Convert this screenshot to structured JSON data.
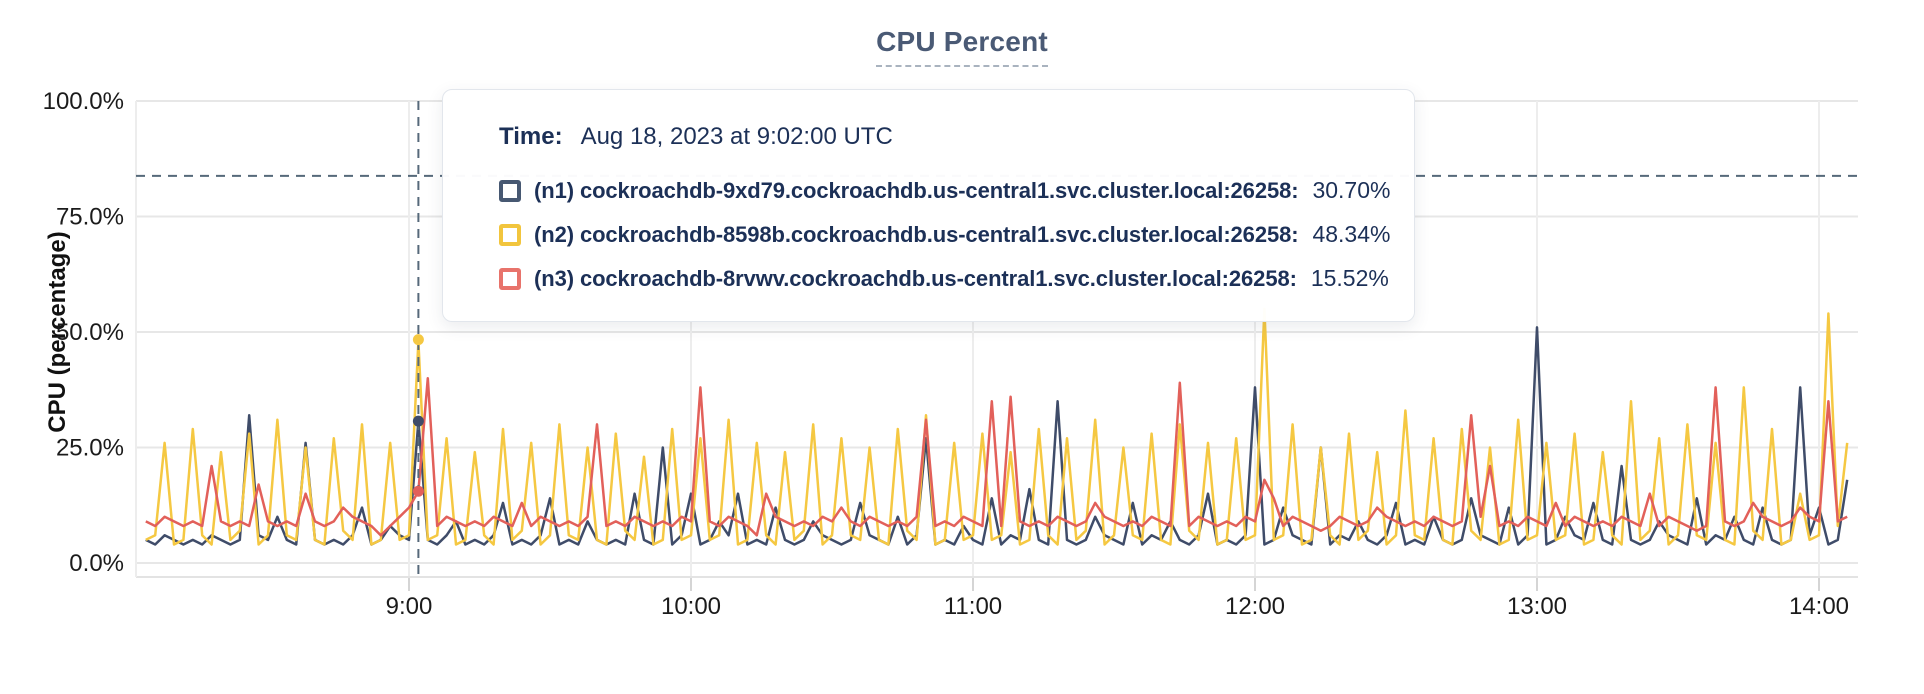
{
  "tooltip": {
    "time_label": "Time:",
    "time_value": "Aug 18, 2023 at 9:02:00 UTC",
    "series": [
      {
        "label": "(n1) cockroachdb-9xd79.cockroachdb.us-central1.svc.cluster.local:26258:",
        "value": "30.70%",
        "color": "#475872"
      },
      {
        "label": "(n2) cockroachdb-8598b.cockroachdb.us-central1.svc.cluster.local:26258:",
        "value": "48.34%",
        "color": "#f2c53d"
      },
      {
        "label": "(n3) cockroachdb-8rvwv.cockroachdb.us-central1.svc.cluster.local:26258:",
        "value": "15.52%",
        "color": "#e8736b"
      }
    ]
  },
  "chart_data": {
    "type": "line",
    "title": "CPU Percent",
    "ylabel": "CPU (percentage)",
    "ylim": [
      0,
      100
    ],
    "grid": true,
    "y_ticks": [
      {
        "v": 0,
        "label": "0.0%"
      },
      {
        "v": 25,
        "label": "25.0%"
      },
      {
        "v": 50,
        "label": "50.0%"
      },
      {
        "v": 75,
        "label": "75.0%"
      },
      {
        "v": 100,
        "label": "100.0%"
      }
    ],
    "x_ticks": [
      {
        "hour": 9,
        "label": "9:00"
      },
      {
        "hour": 10,
        "label": "10:00"
      },
      {
        "hour": 11,
        "label": "11:00"
      },
      {
        "hour": 12,
        "label": "12:00"
      },
      {
        "hour": 13,
        "label": "13:00"
      },
      {
        "hour": 14,
        "label": "14:00"
      }
    ],
    "x_start_hour": 8.0667,
    "x_step_hours": 0.033333,
    "hover": {
      "time_hours": 9.0333,
      "time_label": "9:02:00",
      "cursor_percent": 83.8,
      "dot_percents": [
        30.7,
        48.34,
        15.52
      ]
    },
    "series": [
      {
        "id": "n1",
        "name": "(n1) cockroachdb-9xd79.cockroachdb.us-central1.svc.cluster.local:26258",
        "color": "#3f4c69",
        "values": [
          5,
          4,
          6,
          5,
          4,
          5,
          4,
          6,
          5,
          4,
          5,
          32,
          6,
          5,
          10,
          5,
          4,
          26,
          5,
          4,
          5,
          4,
          6,
          12,
          4,
          5,
          8,
          6,
          5,
          30.7,
          5,
          4,
          6,
          9,
          4,
          5,
          4,
          6,
          13,
          4,
          5,
          4,
          6,
          14,
          4,
          5,
          4,
          9,
          5,
          4,
          5,
          4,
          15,
          5,
          4,
          25,
          4,
          6,
          15,
          4,
          5,
          9,
          6,
          15,
          4,
          5,
          4,
          12,
          5,
          4,
          5,
          9,
          6,
          5,
          4,
          5,
          13,
          6,
          5,
          4,
          10,
          4,
          6,
          27,
          4,
          5,
          4,
          8,
          5,
          4,
          14,
          4,
          6,
          5,
          16,
          5,
          4,
          35,
          5,
          4,
          5,
          10,
          6,
          5,
          4,
          13,
          4,
          6,
          5,
          9,
          5,
          4,
          6,
          15,
          4,
          5,
          4,
          6,
          38,
          4,
          5,
          12,
          6,
          5,
          4,
          25,
          4,
          6,
          5,
          9,
          5,
          4,
          6,
          13,
          4,
          5,
          4,
          10,
          5,
          4,
          5,
          14,
          6,
          5,
          4,
          12,
          4,
          6,
          51,
          4,
          5,
          10,
          6,
          5,
          13,
          5,
          4,
          21,
          5,
          4,
          5,
          9,
          6,
          5,
          4,
          14,
          4,
          6,
          5,
          10,
          5,
          4,
          12,
          5,
          4,
          5,
          38,
          6,
          12,
          4,
          5,
          18
        ]
      },
      {
        "id": "n2",
        "name": "(n2) cockroachdb-8598b.cockroachdb.us-central1.svc.cluster.local:26258",
        "color": "#f5c842",
        "values": [
          5,
          6,
          26,
          4,
          5,
          29,
          6,
          4,
          24,
          5,
          7,
          28,
          4,
          6,
          31,
          6,
          5,
          25,
          5,
          4,
          27,
          7,
          5,
          30,
          4,
          5,
          26,
          5,
          6,
          48,
          5,
          6,
          27,
          4,
          5,
          24,
          6,
          4,
          29,
          5,
          7,
          26,
          4,
          6,
          30,
          6,
          5,
          25,
          5,
          4,
          28,
          7,
          5,
          23,
          4,
          5,
          29,
          5,
          6,
          27,
          5,
          6,
          31,
          4,
          5,
          26,
          6,
          4,
          24,
          5,
          7,
          30,
          4,
          6,
          27,
          6,
          5,
          25,
          5,
          4,
          29,
          7,
          5,
          32,
          4,
          5,
          26,
          5,
          6,
          28,
          5,
          6,
          24,
          4,
          5,
          29,
          6,
          4,
          27,
          5,
          7,
          31,
          4,
          6,
          25,
          6,
          5,
          28,
          5,
          4,
          30,
          7,
          5,
          26,
          4,
          5,
          27,
          5,
          6,
          55,
          5,
          6,
          30,
          4,
          5,
          25,
          6,
          4,
          28,
          5,
          7,
          24,
          4,
          6,
          33,
          6,
          5,
          27,
          5,
          4,
          29,
          7,
          5,
          25,
          4,
          5,
          31,
          5,
          6,
          26,
          5,
          6,
          28,
          4,
          5,
          24,
          6,
          4,
          35,
          5,
          7,
          27,
          4,
          6,
          30,
          6,
          5,
          26,
          5,
          4,
          38,
          7,
          5,
          29,
          4,
          5,
          15,
          5,
          6,
          54,
          8,
          26
        ]
      },
      {
        "id": "n3",
        "name": "(n3) cockroachdb-8rvwv.cockroachdb.us-central1.svc.cluster.local:26258",
        "color": "#e2605a",
        "values": [
          9,
          8,
          10,
          9,
          8,
          9,
          8,
          21,
          9,
          8,
          9,
          8,
          17,
          9,
          8,
          9,
          8,
          15,
          9,
          8,
          9,
          12,
          10,
          9,
          8,
          6,
          8,
          10,
          12,
          15.5,
          40,
          8,
          10,
          9,
          8,
          9,
          8,
          10,
          9,
          8,
          13,
          8,
          10,
          9,
          8,
          9,
          8,
          10,
          30,
          8,
          9,
          8,
          10,
          9,
          8,
          9,
          8,
          10,
          9,
          38,
          9,
          8,
          10,
          9,
          8,
          6,
          15,
          10,
          9,
          8,
          9,
          8,
          10,
          9,
          12,
          9,
          8,
          10,
          9,
          8,
          9,
          8,
          10,
          31,
          8,
          9,
          8,
          10,
          9,
          8,
          35,
          8,
          36,
          9,
          8,
          9,
          8,
          10,
          9,
          8,
          9,
          13,
          10,
          9,
          8,
          9,
          8,
          10,
          9,
          8,
          39,
          8,
          10,
          9,
          8,
          9,
          8,
          10,
          9,
          18,
          14,
          8,
          10,
          9,
          8,
          7,
          8,
          10,
          9,
          8,
          9,
          12,
          10,
          9,
          8,
          9,
          8,
          10,
          9,
          8,
          9,
          32,
          10,
          21,
          8,
          9,
          8,
          10,
          9,
          8,
          13,
          8,
          10,
          9,
          8,
          9,
          8,
          10,
          9,
          8,
          15,
          8,
          10,
          9,
          8,
          7,
          8,
          38,
          9,
          8,
          9,
          13,
          10,
          9,
          8,
          9,
          12,
          10,
          9,
          35,
          9,
          10
        ]
      }
    ]
  }
}
